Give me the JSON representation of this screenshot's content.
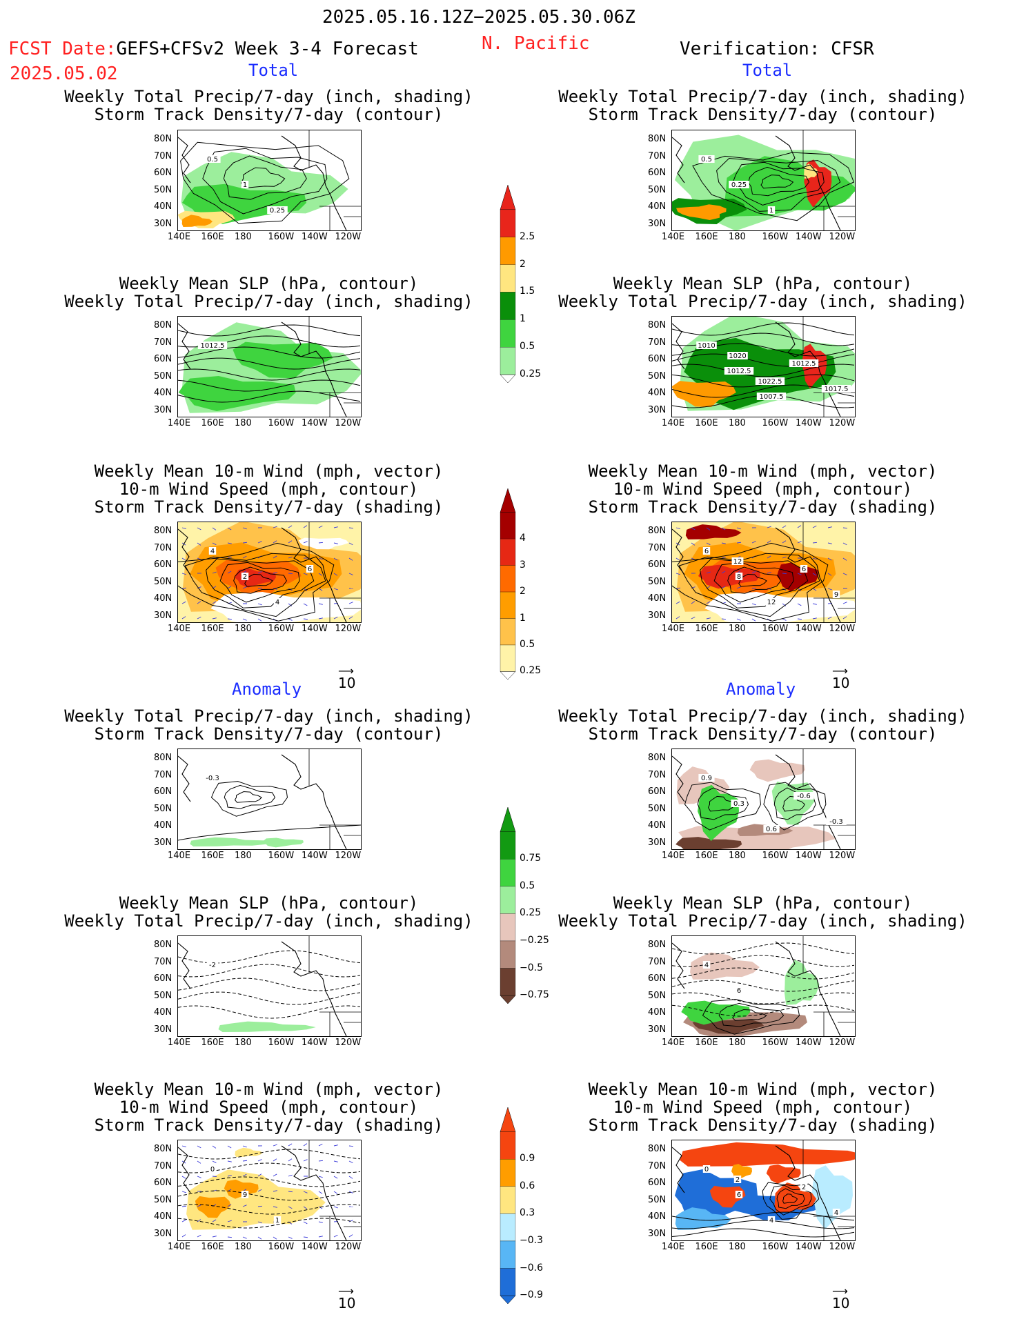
{
  "header": {
    "period": "2025.05.16.12Z−2025.05.30.06Z",
    "fcst_prefix": "FCST Date:",
    "model": "GEFS+CFSv2 Week 3-4 Forecast",
    "fcst_date": "2025.05.02",
    "region": "N. Pacific",
    "verification": "Verification: CFSR"
  },
  "sections": {
    "total": "Total",
    "anomaly": "Anomaly"
  },
  "titles": {
    "precip_storm": [
      "Weekly Total Precip/7-day (inch, shading)",
      "Storm Track Density/7-day (contour)"
    ],
    "slp_precip": [
      "Weekly Mean SLP (hPa, contour)",
      "Weekly Total Precip/7-day (inch, shading)"
    ],
    "wind_storm": [
      "Weekly Mean 10-m Wind (mph, vector)",
      "10-m Wind Speed (mph, contour)",
      "Storm Track Density/7-day (shading)"
    ]
  },
  "axes": {
    "lat_labels": [
      "80N",
      "70N",
      "60N",
      "50N",
      "40N",
      "30N"
    ],
    "lon_labels": [
      "140E",
      "160E",
      "180",
      "160W",
      "140W",
      "120W"
    ]
  },
  "vector_ref": "10",
  "colorbars": {
    "precip_total": {
      "labels": [
        "2.5",
        "2",
        "1.5",
        "1",
        "0.5",
        "0.25"
      ],
      "colors": [
        "#e8251b",
        "#ff9a00",
        "#ffe680",
        "#0a8f0a",
        "#3fd43f",
        "#9cee9c"
      ]
    },
    "storm_total": {
      "labels": [
        "4",
        "3",
        "2",
        "1",
        "0.5",
        "0.25"
      ],
      "colors": [
        "#a40000",
        "#e62814",
        "#ff6a00",
        "#ff9d00",
        "#ffc24a",
        "#fff3a8"
      ]
    },
    "precip_anom": {
      "labels": [
        "0.75",
        "0.5",
        "0.25",
        "−0.25",
        "−0.5",
        "−0.75"
      ],
      "colors": [
        "#129a12",
        "#3fd43f",
        "#9cee9c",
        "#e7c6bc",
        "#b38a7c",
        "#6b3f30"
      ]
    },
    "storm_anom": {
      "labels": [
        "0.9",
        "0.6",
        "0.3",
        "−0.3",
        "−0.6",
        "−0.9"
      ],
      "colors": [
        "#f54510",
        "#ff9d00",
        "#ffe680",
        "#b9ecff",
        "#58b6f5",
        "#1f6ed8"
      ]
    }
  },
  "panel_labels": {
    "f_precip_total": [
      "0.5",
      "1",
      "0.25"
    ],
    "v_precip_total": [
      "0.5",
      "0.25",
      "1"
    ],
    "f_slp_total": [
      "1012.5"
    ],
    "v_slp_total": [
      "1010",
      "1012.5",
      "1007.5",
      "1012.5",
      "1017.5",
      "1020",
      "1022.5"
    ],
    "f_wind_total": [
      "4",
      "2",
      "4",
      "6"
    ],
    "v_wind_total": [
      "6",
      "8",
      "12",
      "6",
      "9",
      "12"
    ],
    "f_precip_anom": [
      "-0.3"
    ],
    "v_precip_anom": [
      "0.9",
      "0.3",
      "0.6",
      "-0.6",
      "-0.3"
    ],
    "f_slp_anom": [
      "-2"
    ],
    "v_slp_anom": [
      "4",
      "6"
    ],
    "f_wind_anom": [
      "0",
      "9",
      "1"
    ],
    "v_wind_anom": [
      "0",
      "6",
      "4",
      "2",
      "4",
      "2"
    ]
  },
  "colors": {
    "title_red": "#ff2020",
    "section_blue": "#1a2cff",
    "land": "#ffffff",
    "contour": "#000000",
    "vector": "#3a3ad8"
  }
}
